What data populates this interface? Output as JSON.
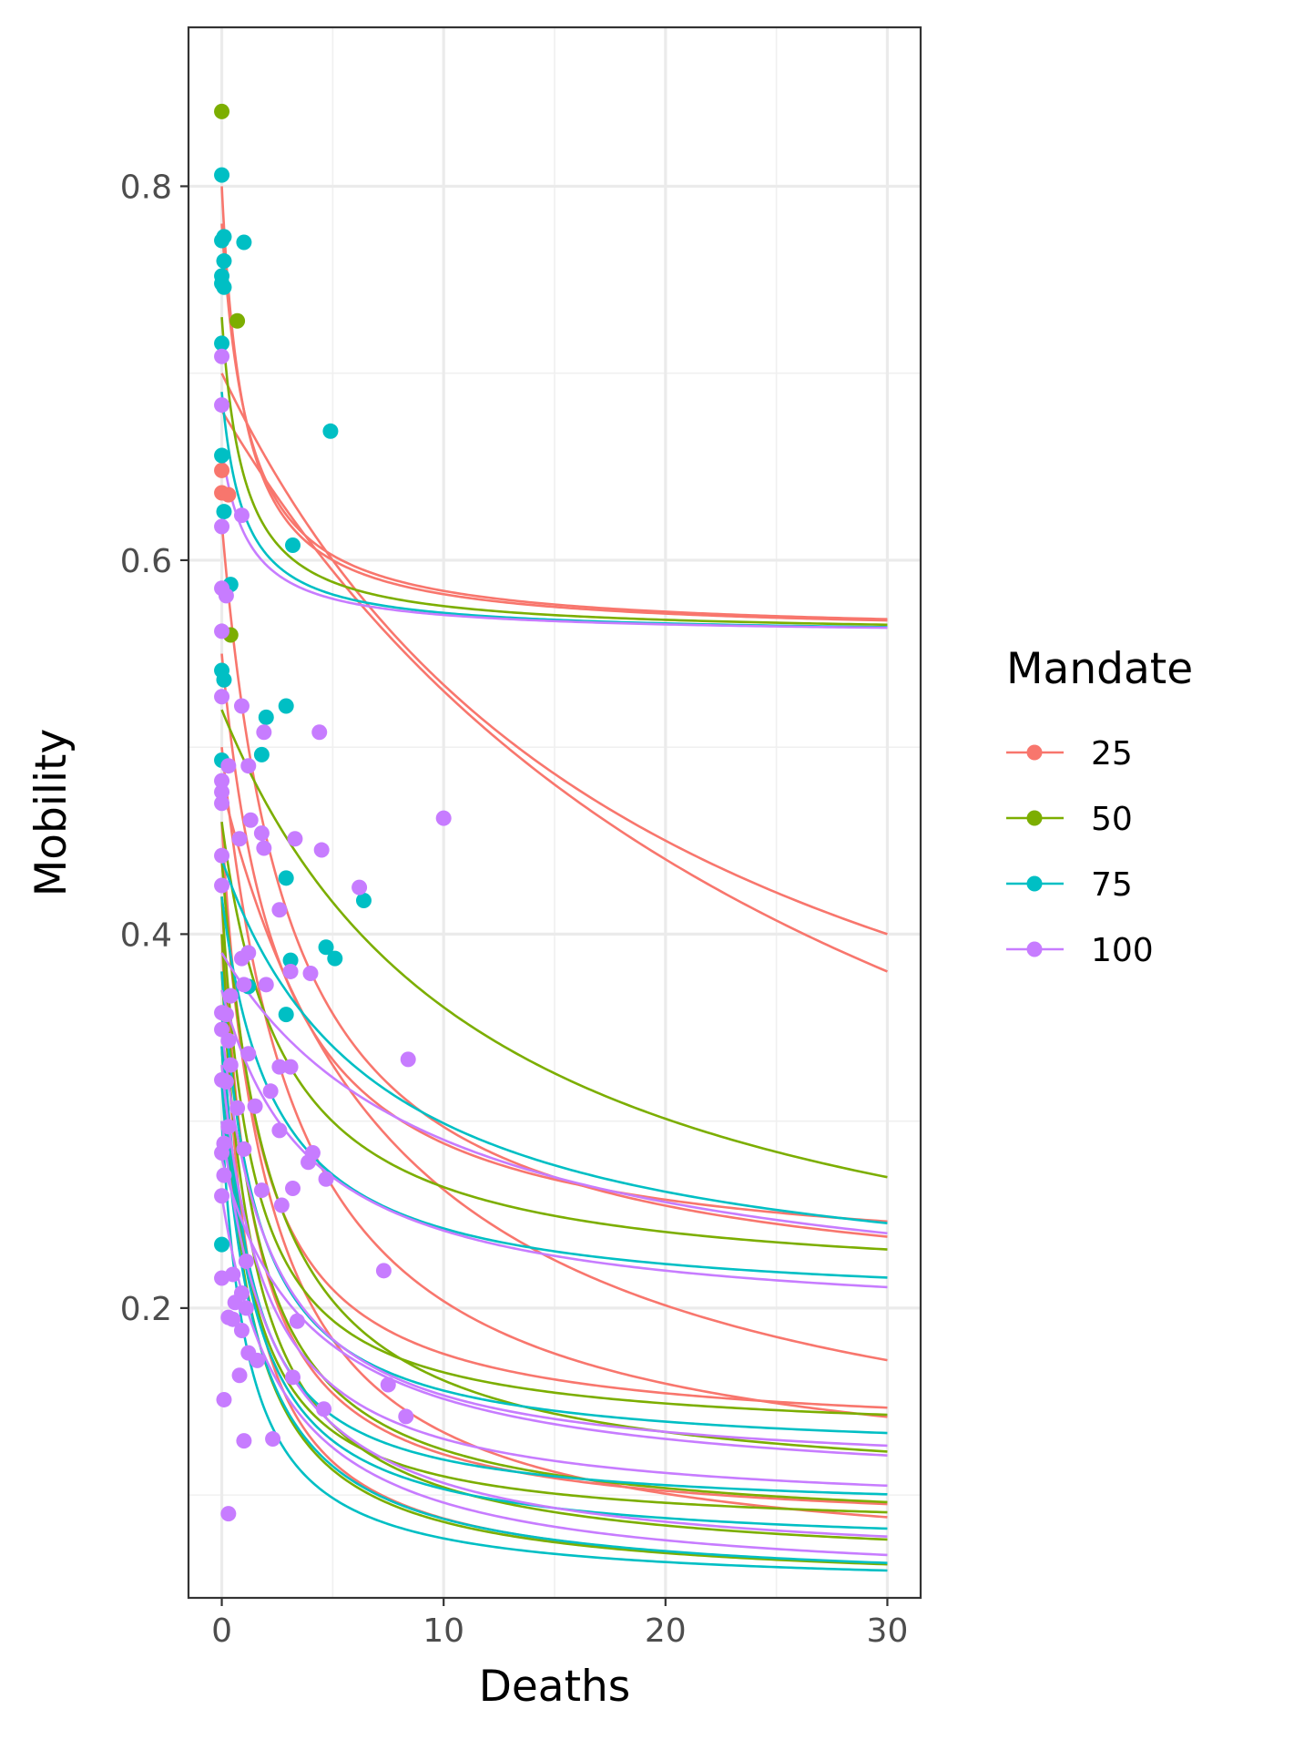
{
  "chart_data": {
    "type": "scatter",
    "xlabel": "Deaths",
    "ylabel": "Mobility",
    "xlim": [
      -1.5,
      31.5
    ],
    "ylim": [
      0.045,
      0.885
    ],
    "xticks": [
      0,
      10,
      20,
      30
    ],
    "xtick_labels": [
      "0",
      "10",
      "20",
      "30"
    ],
    "yticks": [
      0.2,
      0.4,
      0.6,
      0.8
    ],
    "ytick_labels": [
      "0.2",
      "0.4",
      "0.6",
      "0.8"
    ],
    "grid": true,
    "legend": {
      "title": "Mandate",
      "position": "right",
      "entries": [
        {
          "label": "25",
          "color": "#F8766D"
        },
        {
          "label": "50",
          "color": "#7CAE00"
        },
        {
          "label": "75",
          "color": "#00BFC4"
        },
        {
          "label": "100",
          "color": "#C77CFF"
        }
      ]
    },
    "series": [
      {
        "name": "25",
        "color": "#F8766D",
        "points": [
          [
            0,
            0.636
          ],
          [
            0,
            0.648
          ],
          [
            0.3,
            0.635
          ]
        ],
        "curves": [
          {
            "start": 0.8,
            "asymptote": 0.56,
            "k": 1.0
          },
          {
            "start": 0.78,
            "asymptote": 0.56,
            "k": 1.2
          },
          {
            "start": 0.7,
            "asymptote": 0.2,
            "k": 20
          },
          {
            "start": 0.68,
            "asymptote": 0.08,
            "k": 30
          },
          {
            "start": 0.62,
            "asymptote": 0.2,
            "k": 3.0
          },
          {
            "start": 0.55,
            "asymptote": 0.22,
            "k": 2.6
          },
          {
            "start": 0.5,
            "asymptote": 0.1,
            "k": 3.5
          },
          {
            "start": 0.48,
            "asymptote": 0.09,
            "k": 8.0
          },
          {
            "start": 0.46,
            "asymptote": 0.13,
            "k": 1.6
          },
          {
            "start": 0.44,
            "asymptote": 0.06,
            "k": 2.4
          },
          {
            "start": 0.42,
            "asymptote": 0.08,
            "k": 1.4
          },
          {
            "start": 0.4,
            "asymptote": 0.05,
            "k": 1.2
          }
        ]
      },
      {
        "name": "50",
        "color": "#7CAE00",
        "points": [
          [
            0,
            0.84
          ],
          [
            0.7,
            0.728
          ],
          [
            0.4,
            0.56
          ]
        ],
        "curves": [
          {
            "start": 0.73,
            "asymptote": 0.56,
            "k": 1.0
          },
          {
            "start": 0.52,
            "asymptote": 0.17,
            "k": 12
          },
          {
            "start": 0.46,
            "asymptote": 0.21,
            "k": 2.8
          },
          {
            "start": 0.44,
            "asymptote": 0.1,
            "k": 2.2
          },
          {
            "start": 0.42,
            "asymptote": 0.13,
            "k": 1.4
          },
          {
            "start": 0.4,
            "asymptote": 0.08,
            "k": 1.6
          },
          {
            "start": 0.38,
            "asymptote": 0.06,
            "k": 1.6
          },
          {
            "start": 0.36,
            "asymptote": 0.08,
            "k": 1.2
          },
          {
            "start": 0.34,
            "asymptote": 0.05,
            "k": 1.4
          }
        ]
      },
      {
        "name": "75",
        "color": "#00BFC4",
        "points": [
          [
            0,
            0.806
          ],
          [
            0,
            0.771
          ],
          [
            0.1,
            0.773
          ],
          [
            1,
            0.77
          ],
          [
            0.1,
            0.76
          ],
          [
            0,
            0.752
          ],
          [
            0,
            0.748
          ],
          [
            0.1,
            0.746
          ],
          [
            0,
            0.716
          ],
          [
            4.9,
            0.669
          ],
          [
            0,
            0.656
          ],
          [
            0.1,
            0.626
          ],
          [
            3.2,
            0.608
          ],
          [
            0.4,
            0.587
          ],
          [
            0,
            0.541
          ],
          [
            0.1,
            0.536
          ],
          [
            2.9,
            0.522
          ],
          [
            2.0,
            0.516
          ],
          [
            1.8,
            0.496
          ],
          [
            0,
            0.493
          ],
          [
            2.9,
            0.43
          ],
          [
            6.4,
            0.418
          ],
          [
            4.7,
            0.393
          ],
          [
            5.1,
            0.387
          ],
          [
            3.1,
            0.386
          ],
          [
            1.2,
            0.372
          ],
          [
            2.9,
            0.357
          ],
          [
            0,
            0.234
          ]
        ],
        "curves": [
          {
            "start": 0.69,
            "asymptote": 0.56,
            "k": 1.0
          },
          {
            "start": 0.44,
            "asymptote": 0.2,
            "k": 7.0
          },
          {
            "start": 0.42,
            "asymptote": 0.2,
            "k": 2.4
          },
          {
            "start": 0.38,
            "asymptote": 0.12,
            "k": 1.6
          },
          {
            "start": 0.36,
            "asymptote": 0.09,
            "k": 1.2
          },
          {
            "start": 0.34,
            "asymptote": 0.07,
            "k": 1.4
          },
          {
            "start": 0.32,
            "asymptote": 0.05,
            "k": 1.6
          },
          {
            "start": 0.3,
            "asymptote": 0.05,
            "k": 1.2
          }
        ]
      },
      {
        "name": "100",
        "color": "#C77CFF",
        "points": [
          [
            0,
            0.709
          ],
          [
            0,
            0.683
          ],
          [
            0.9,
            0.624
          ],
          [
            0,
            0.618
          ],
          [
            0,
            0.585
          ],
          [
            0.2,
            0.581
          ],
          [
            0,
            0.562
          ],
          [
            0,
            0.527
          ],
          [
            0.9,
            0.522
          ],
          [
            4.4,
            0.508
          ],
          [
            1.9,
            0.508
          ],
          [
            0.3,
            0.49
          ],
          [
            1.2,
            0.49
          ],
          [
            0,
            0.482
          ],
          [
            0,
            0.476
          ],
          [
            0,
            0.47
          ],
          [
            10,
            0.462
          ],
          [
            1.3,
            0.461
          ],
          [
            1.8,
            0.454
          ],
          [
            3.3,
            0.451
          ],
          [
            0.8,
            0.451
          ],
          [
            1.9,
            0.446
          ],
          [
            4.5,
            0.445
          ],
          [
            0,
            0.442
          ],
          [
            0,
            0.426
          ],
          [
            6.2,
            0.425
          ],
          [
            2.6,
            0.413
          ],
          [
            1.2,
            0.39
          ],
          [
            0.9,
            0.387
          ],
          [
            1.0,
            0.373
          ],
          [
            3.1,
            0.38
          ],
          [
            4,
            0.379
          ],
          [
            2.0,
            0.373
          ],
          [
            0.4,
            0.367
          ],
          [
            0,
            0.358
          ],
          [
            0.2,
            0.357
          ],
          [
            0.3,
            0.343
          ],
          [
            0,
            0.349
          ],
          [
            8.4,
            0.333
          ],
          [
            1.2,
            0.336
          ],
          [
            0.4,
            0.33
          ],
          [
            2.6,
            0.329
          ],
          [
            3.1,
            0.329
          ],
          [
            0,
            0.322
          ],
          [
            0.2,
            0.321
          ],
          [
            2.2,
            0.316
          ],
          [
            1.5,
            0.308
          ],
          [
            0.7,
            0.307
          ],
          [
            0.3,
            0.297
          ],
          [
            2.6,
            0.295
          ],
          [
            0.1,
            0.288
          ],
          [
            1.0,
            0.285
          ],
          [
            4.1,
            0.283
          ],
          [
            0,
            0.283
          ],
          [
            3.9,
            0.278
          ],
          [
            0.1,
            0.271
          ],
          [
            4.7,
            0.269
          ],
          [
            3.2,
            0.264
          ],
          [
            1.8,
            0.263
          ],
          [
            0,
            0.26
          ],
          [
            2.7,
            0.255
          ],
          [
            7.3,
            0.22
          ],
          [
            1.1,
            0.225
          ],
          [
            0.5,
            0.218
          ],
          [
            0,
            0.216
          ],
          [
            0.9,
            0.208
          ],
          [
            0.6,
            0.203
          ],
          [
            1.1,
            0.2
          ],
          [
            0.3,
            0.195
          ],
          [
            0.5,
            0.194
          ],
          [
            3.4,
            0.193
          ],
          [
            0.9,
            0.188
          ],
          [
            1.2,
            0.176
          ],
          [
            1.6,
            0.172
          ],
          [
            0.8,
            0.164
          ],
          [
            3.2,
            0.163
          ],
          [
            7.5,
            0.159
          ],
          [
            0.1,
            0.151
          ],
          [
            4.6,
            0.146
          ],
          [
            8.3,
            0.142
          ],
          [
            2.3,
            0.13
          ],
          [
            1.0,
            0.129
          ],
          [
            0.3,
            0.09
          ]
        ],
        "curves": [
          {
            "start": 0.66,
            "asymptote": 0.56,
            "k": 1.2
          },
          {
            "start": 0.39,
            "asymptote": 0.19,
            "k": 10
          },
          {
            "start": 0.37,
            "asymptote": 0.19,
            "k": 4.0
          },
          {
            "start": 0.35,
            "asymptote": 0.11,
            "k": 2.2
          },
          {
            "start": 0.33,
            "asymptote": 0.09,
            "k": 2.0
          },
          {
            "start": 0.3,
            "asymptote": 0.06,
            "k": 2.4
          },
          {
            "start": 0.28,
            "asymptote": 0.1,
            "k": 4.0
          },
          {
            "start": 0.26,
            "asymptote": 0.05,
            "k": 2.8
          }
        ]
      }
    ]
  }
}
